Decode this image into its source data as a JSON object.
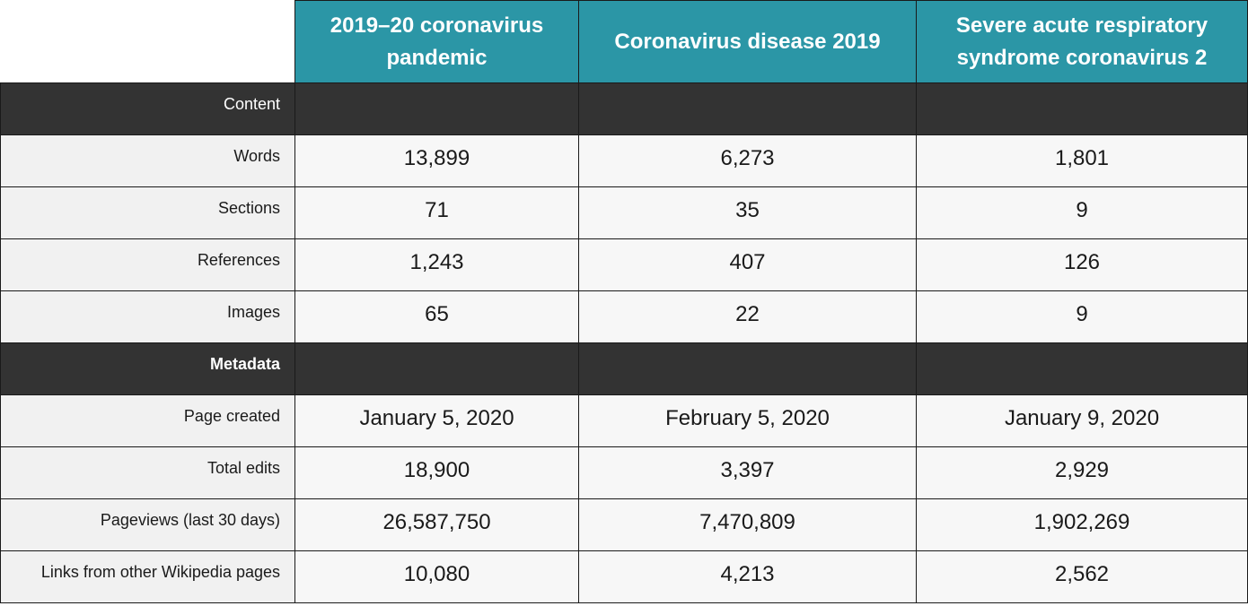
{
  "columns": [
    "2019–20 coronavirus pandemic",
    "Coronavirus disease 2019",
    "Severe acute respiratory syndrome coronavirus 2"
  ],
  "sections": {
    "content": "Content",
    "metadata": "Metadata"
  },
  "content_rows": [
    {
      "label": "Words",
      "values": [
        "13,899",
        "6,273",
        "1,801"
      ]
    },
    {
      "label": "Sections",
      "values": [
        "71",
        "35",
        "9"
      ]
    },
    {
      "label": "References",
      "values": [
        "1,243",
        "407",
        "126"
      ]
    },
    {
      "label": "Images",
      "values": [
        "65",
        "22",
        "9"
      ]
    }
  ],
  "metadata_rows": [
    {
      "label": "Page created",
      "values": [
        "January 5, 2020",
        "February 5, 2020",
        "January 9, 2020"
      ]
    },
    {
      "label": "Total edits",
      "values": [
        "18,900",
        "3,397",
        "2,929"
      ]
    },
    {
      "label": "Pageviews (last 30 days)",
      "values": [
        "26,587,750",
        "7,470,809",
        "1,902,269"
      ]
    },
    {
      "label": "Links from other Wikipedia pages",
      "values": [
        "10,080",
        "4,213",
        "2,562"
      ]
    }
  ]
}
